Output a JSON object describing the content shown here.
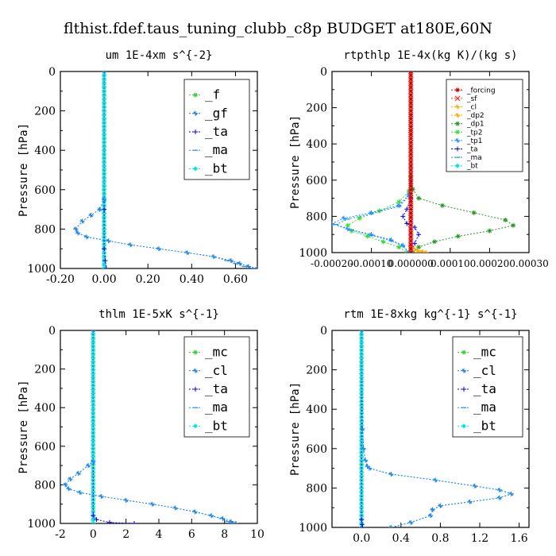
{
  "figure": {
    "title": "flthist.fdef.taus_tuning_clubb_c8p  BUDGET at180E,60N"
  },
  "colors": {
    "_f": "#33cc33",
    "_gf": "#1e7fd6",
    "_ta": "#0000ee",
    "_ma": "#1e90ff",
    "_bt": "#00e5ee",
    "_forcing": "#cc0000",
    "_sf": "#ff3333",
    "_cl": "#1e7fd6",
    "_dp2": "#ffa500",
    "_dp1": "#229922",
    "_tp2": "#33dd33",
    "_tp1": "#1e90ff",
    "_mc": "#33cc33",
    "rtpthlp_cl": "#ffa500"
  },
  "chart_data": [
    {
      "type": "line",
      "title": "um  1E-4xm s^{-2}",
      "xlabel": "",
      "ylabel": "Pressure [hPa]",
      "xlim": [
        -0.2,
        0.7
      ],
      "ylim": [
        1000,
        0
      ],
      "xticks": [
        -0.2,
        0,
        0.2,
        0.4,
        0.6
      ],
      "xtick_labels": [
        "-0.20",
        "0.00",
        "0.20",
        "0.40",
        "0.60"
      ],
      "yticks": [
        0,
        200,
        400,
        600,
        800,
        1000
      ],
      "ytick_labels": [
        "0",
        "200",
        "400",
        "600",
        "800",
        "1000"
      ],
      "legend": {
        "position": "top-right",
        "entries": [
          "_f",
          "_gf",
          "_ta",
          "_ma",
          "_bt"
        ]
      },
      "series": [
        {
          "name": "_f",
          "key": "_f",
          "x": [
            0.0,
            0.0
          ],
          "y": [
            0,
            1000
          ],
          "dense_markers": true
        },
        {
          "name": "_bt",
          "key": "_bt",
          "x": [
            0.0,
            0.0
          ],
          "y": [
            0,
            1000
          ],
          "dense_markers": true
        },
        {
          "name": "_ta",
          "key": "_ta",
          "x": [
            0.0,
            0.0,
            0.0,
            0.005,
            0.01
          ],
          "y": [
            0,
            700,
            900,
            960,
            1000
          ]
        },
        {
          "name": "_gf",
          "key": "_gf",
          "x": [
            0.0,
            0.0,
            -0.02,
            -0.06,
            -0.1,
            -0.13,
            -0.12,
            -0.08,
            0.02,
            0.12,
            0.25,
            0.38,
            0.5,
            0.58,
            0.62,
            0.66,
            0.7
          ],
          "y": [
            0,
            650,
            700,
            730,
            760,
            800,
            820,
            840,
            860,
            880,
            900,
            920,
            940,
            960,
            975,
            990,
            1000
          ]
        },
        {
          "name": "_ma",
          "key": "_ma",
          "x": [
            0.0,
            0.0,
            -0.02,
            -0.06,
            -0.1,
            -0.13,
            -0.12,
            -0.08,
            0.02,
            0.12,
            0.25,
            0.38,
            0.5,
            0.56,
            0.6,
            0.64,
            0.68
          ],
          "y": [
            0,
            650,
            700,
            730,
            760,
            800,
            820,
            840,
            860,
            880,
            900,
            920,
            940,
            960,
            975,
            990,
            1000
          ]
        }
      ]
    },
    {
      "type": "line",
      "title": "rtpthlp  1E-4x(kg K)/(kg s)",
      "xlabel": "",
      "ylabel": "Pressure [hPa]",
      "xlim": [
        -0.0002,
        0.0003
      ],
      "ylim": [
        1000,
        0
      ],
      "xticks": [
        -0.0002,
        -0.0001,
        0,
        0.0001,
        0.0002,
        0.0003
      ],
      "xtick_labels": [
        "-0.00020",
        "-0.00010",
        "0.000000",
        "0.00010",
        "0.00020",
        "0.00030"
      ],
      "yticks": [
        0,
        200,
        400,
        600,
        800,
        1000
      ],
      "ytick_labels": [
        "0",
        "200",
        "400",
        "600",
        "800",
        "1000"
      ],
      "legend": {
        "position": "top-right",
        "entries": [
          "_forcing",
          "_sf",
          "_cl",
          "_dp2",
          "_dp1",
          "_tp2",
          "_tp1",
          "_ta",
          "_ma",
          "_bt"
        ]
      },
      "series": [
        {
          "name": "_dp1",
          "key": "_dp1",
          "x": [
            0,
            0,
            5e-06,
            2e-05,
            8e-05,
            0.00016,
            0.00024,
            0.00026,
            0.0002,
            0.00012,
            6e-05,
            2e-05,
            5e-06
          ],
          "y": [
            0,
            580,
            650,
            700,
            740,
            780,
            820,
            850,
            880,
            910,
            940,
            970,
            1000
          ]
        },
        {
          "name": "_tp2",
          "key": "_tp2",
          "x": [
            0,
            0,
            -5e-06,
            -3e-05,
            -8e-05,
            -0.00013,
            -0.00016,
            -0.00015,
            -0.00011,
            -7e-05,
            -3e-05,
            -1e-05
          ],
          "y": [
            0,
            580,
            660,
            720,
            770,
            810,
            850,
            880,
            910,
            940,
            970,
            1000
          ]
        },
        {
          "name": "_tp1",
          "key": "_tp1",
          "x": [
            0,
            0,
            -5e-06,
            -3e-05,
            -0.0001,
            -0.00017,
            -0.0002,
            -0.00016,
            -0.0001,
            -5e-05,
            -2e-05,
            -5e-06
          ],
          "y": [
            0,
            600,
            680,
            740,
            780,
            810,
            840,
            870,
            900,
            930,
            960,
            1000
          ]
        },
        {
          "name": "_ma",
          "key": "_ma",
          "x": [
            0,
            0,
            -5e-06,
            -3e-05,
            -0.0001,
            -0.00016,
            -0.00019,
            -0.00015,
            -0.0001,
            -5e-05,
            -2e-05,
            -5e-06
          ],
          "y": [
            0,
            600,
            690,
            745,
            785,
            815,
            845,
            875,
            905,
            935,
            965,
            1000
          ]
        },
        {
          "name": "_ta",
          "key": "_ta",
          "x": [
            0,
            0,
            -1e-05,
            -2e-05,
            -1e-05,
            1e-05,
            2e-05,
            1e-05,
            0
          ],
          "y": [
            0,
            700,
            760,
            800,
            840,
            860,
            900,
            950,
            1000
          ]
        },
        {
          "name": "_cl",
          "key": "rtpthlp_cl",
          "x": [
            0,
            0,
            1e-05,
            3e-05,
            2e-05,
            0
          ],
          "y": [
            0,
            960,
            980,
            995,
            1000,
            1000
          ]
        },
        {
          "name": "_dp2",
          "key": "_dp2",
          "x": [
            0,
            0,
            2e-05,
            4e-05
          ],
          "y": [
            0,
            980,
            995,
            1000
          ]
        },
        {
          "name": "_bt",
          "key": "_bt",
          "x": [
            0,
            0
          ],
          "y": [
            0,
            1000
          ]
        },
        {
          "name": "_sf",
          "key": "_sf",
          "x": [
            0,
            0
          ],
          "y": [
            0,
            1000
          ],
          "dense_markers": true
        },
        {
          "name": "_forcing",
          "key": "_forcing",
          "x": [
            0,
            0
          ],
          "y": [
            0,
            1000
          ],
          "dense_markers": true
        }
      ]
    },
    {
      "type": "line",
      "title": "thlm  1E-5xK s^{-1}",
      "xlabel": "",
      "ylabel": "Pressure [hPa]",
      "xlim": [
        -2,
        10
      ],
      "ylim": [
        1000,
        0
      ],
      "xticks": [
        -2,
        0,
        2,
        4,
        6,
        8,
        10
      ],
      "xtick_labels": [
        "-2",
        "0",
        "2",
        "4",
        "6",
        "8",
        "10"
      ],
      "yticks": [
        0,
        200,
        400,
        600,
        800,
        1000
      ],
      "ytick_labels": [
        "0",
        "200",
        "400",
        "600",
        "800",
        "1000"
      ],
      "legend": {
        "position": "top-right",
        "entries": [
          "_mc",
          "_cl",
          "_ta",
          "_ma",
          "_bt"
        ]
      },
      "series": [
        {
          "name": "_mc",
          "key": "_mc",
          "x": [
            0,
            0
          ],
          "y": [
            0,
            1000
          ],
          "dense_markers": true
        },
        {
          "name": "_bt",
          "key": "_bt",
          "x": [
            0,
            0
          ],
          "y": [
            0,
            1000
          ],
          "dense_markers": true
        },
        {
          "name": "_ta",
          "key": "_ta",
          "x": [
            0,
            0,
            0.2,
            1.0,
            2.5
          ],
          "y": [
            0,
            960,
            980,
            995,
            1000
          ]
        },
        {
          "name": "_cl",
          "key": "_cl",
          "x": [
            0,
            0,
            -0.3,
            -0.9,
            -1.4,
            -1.7,
            -1.5,
            -0.8,
            0.5,
            2.0,
            3.6,
            5.0,
            6.2,
            7.2,
            7.9,
            8.4,
            8.7
          ],
          "y": [
            0,
            680,
            700,
            740,
            770,
            800,
            820,
            840,
            860,
            880,
            900,
            920,
            940,
            960,
            975,
            990,
            1000
          ]
        },
        {
          "name": "_ma",
          "key": "_ma",
          "x": [
            0,
            0,
            -0.3,
            -0.9,
            -1.4,
            -1.7,
            -1.5,
            -0.8,
            0.5,
            2.0,
            3.6,
            5.0,
            6.2,
            7.2,
            7.8,
            8.2,
            8.5
          ],
          "y": [
            0,
            680,
            700,
            740,
            770,
            800,
            820,
            840,
            860,
            880,
            900,
            920,
            940,
            960,
            975,
            990,
            1000
          ]
        }
      ]
    },
    {
      "type": "line",
      "title": "rtm  1E-8xkg kg^{-1} s^{-1}",
      "xlabel": "",
      "ylabel": "Pressure [hPa]",
      "xlim": [
        -0.3,
        1.7
      ],
      "ylim": [
        1000,
        0
      ],
      "xticks": [
        0,
        0.4,
        0.8,
        1.2,
        1.6
      ],
      "xtick_labels": [
        "0.0",
        "0.4",
        "0.8",
        "1.2",
        "1.6"
      ],
      "yticks": [
        0,
        200,
        400,
        600,
        800,
        1000
      ],
      "ytick_labels": [
        "0",
        "200",
        "400",
        "600",
        "800",
        "1000"
      ],
      "legend": {
        "position": "top-right",
        "entries": [
          "_mc",
          "_cl",
          "_ta",
          "_ma",
          "_bt"
        ]
      },
      "series": [
        {
          "name": "_mc",
          "key": "_mc",
          "x": [
            0,
            0
          ],
          "y": [
            0,
            1000
          ],
          "dense_markers": true
        },
        {
          "name": "_bt",
          "key": "_bt",
          "x": [
            0,
            0
          ],
          "y": [
            0,
            1000
          ],
          "dense_markers": true
        },
        {
          "name": "_ta",
          "key": "_ta",
          "x": [
            0,
            0,
            0.005,
            0.01
          ],
          "y": [
            0,
            960,
            985,
            1000
          ]
        },
        {
          "name": "_cl",
          "key": "_cl",
          "x": [
            0,
            0.01,
            0.02,
            0.04,
            0.06,
            0.08,
            0.3,
            0.75,
            1.15,
            1.4,
            1.52,
            1.4,
            1.1,
            0.8,
            0.72,
            0.7,
            0.5,
            0.3
          ],
          "y": [
            0,
            500,
            600,
            660,
            690,
            700,
            730,
            760,
            790,
            810,
            830,
            850,
            870,
            890,
            910,
            940,
            975,
            1000
          ]
        },
        {
          "name": "_ma",
          "key": "_ma",
          "x": [
            0,
            0.01,
            0.02,
            0.04,
            0.06,
            0.08,
            0.3,
            0.75,
            1.15,
            1.4,
            1.52,
            1.4,
            1.1,
            0.8,
            0.72,
            0.7,
            0.5,
            0.3
          ],
          "y": [
            0,
            500,
            600,
            660,
            690,
            700,
            730,
            760,
            790,
            810,
            830,
            850,
            870,
            890,
            910,
            940,
            975,
            1000
          ]
        }
      ]
    }
  ]
}
